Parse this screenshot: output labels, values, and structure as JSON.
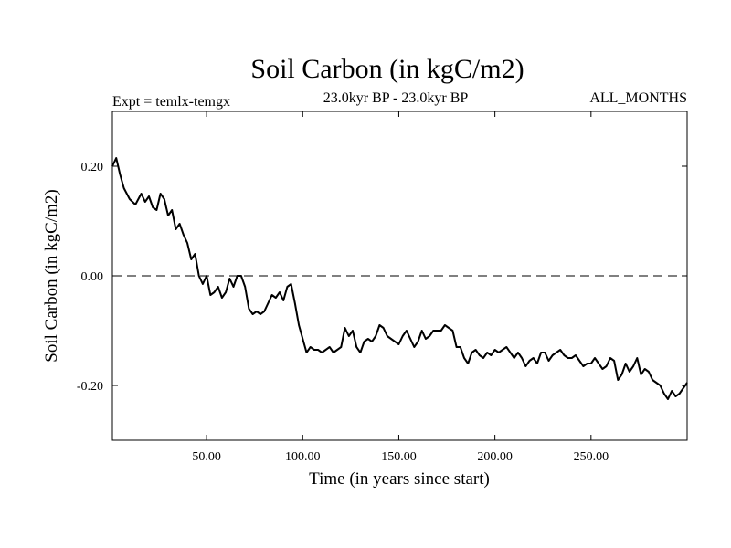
{
  "chart_data": {
    "type": "line",
    "title": "Soil Carbon (in kgC/m2)",
    "subtitle_left": "Expt = temlx-temgx",
    "subtitle_center": "23.0kyr BP - 23.0kyr BP",
    "subtitle_right": "ALL_MONTHS",
    "xlabel": "Time (in years since start)",
    "ylabel": "Soil Carbon (in kgC/m2)",
    "xlim": [
      1,
      300
    ],
    "ylim": [
      -0.3,
      0.3
    ],
    "xticks": [
      50,
      100,
      150,
      200,
      250
    ],
    "xtick_labels": [
      "50.00",
      "100.00",
      "150.00",
      "200.00",
      "250.00"
    ],
    "yticks": [
      0.2,
      0.0,
      -0.2
    ],
    "ytick_labels": [
      "0.20",
      "0.00",
      "-0.20"
    ],
    "grid": false,
    "reference_line": {
      "y": 0.0,
      "style": "dashed"
    },
    "series": [
      {
        "x": [
          1,
          3,
          5,
          7,
          10,
          13,
          16,
          18,
          20,
          22,
          24,
          26,
          28,
          30,
          32,
          34,
          36,
          38,
          40,
          42,
          44,
          46,
          48,
          50,
          52,
          54,
          56,
          58,
          60,
          62,
          64,
          66,
          68,
          70,
          72,
          74,
          76,
          78,
          80,
          82,
          84,
          86,
          88,
          90,
          92,
          94,
          96,
          98,
          100,
          102,
          104,
          106,
          108,
          110,
          112,
          114,
          116,
          118,
          120,
          122,
          124,
          126,
          128,
          130,
          132,
          134,
          136,
          138,
          140,
          142,
          144,
          146,
          148,
          150,
          152,
          154,
          156,
          158,
          160,
          162,
          164,
          166,
          168,
          170,
          172,
          174,
          176,
          178,
          180,
          182,
          184,
          186,
          188,
          190,
          192,
          194,
          196,
          198,
          200,
          202,
          204,
          206,
          208,
          210,
          212,
          214,
          216,
          218,
          220,
          222,
          224,
          226,
          228,
          230,
          232,
          234,
          236,
          238,
          240,
          242,
          244,
          246,
          248,
          250,
          252,
          254,
          256,
          258,
          260,
          262,
          264,
          266,
          268,
          270,
          272,
          274,
          276,
          278,
          280,
          282,
          284,
          286,
          288,
          290,
          292,
          294,
          296,
          298,
          300
        ],
        "y": [
          0.2,
          0.215,
          0.185,
          0.16,
          0.14,
          0.13,
          0.15,
          0.135,
          0.145,
          0.125,
          0.12,
          0.15,
          0.14,
          0.11,
          0.12,
          0.085,
          0.095,
          0.075,
          0.06,
          0.03,
          0.04,
          0.0,
          -0.015,
          0.0,
          -0.035,
          -0.03,
          -0.02,
          -0.04,
          -0.03,
          -0.005,
          -0.02,
          0.0,
          0.0,
          -0.02,
          -0.06,
          -0.07,
          -0.065,
          -0.07,
          -0.065,
          -0.05,
          -0.035,
          -0.04,
          -0.03,
          -0.045,
          -0.02,
          -0.015,
          -0.05,
          -0.09,
          -0.115,
          -0.14,
          -0.13,
          -0.135,
          -0.135,
          -0.14,
          -0.135,
          -0.13,
          -0.14,
          -0.135,
          -0.13,
          -0.095,
          -0.11,
          -0.1,
          -0.13,
          -0.14,
          -0.12,
          -0.115,
          -0.12,
          -0.11,
          -0.09,
          -0.095,
          -0.11,
          -0.115,
          -0.12,
          -0.125,
          -0.11,
          -0.1,
          -0.115,
          -0.13,
          -0.12,
          -0.1,
          -0.115,
          -0.11,
          -0.1,
          -0.1,
          -0.1,
          -0.09,
          -0.095,
          -0.1,
          -0.13,
          -0.13,
          -0.15,
          -0.16,
          -0.14,
          -0.135,
          -0.145,
          -0.15,
          -0.14,
          -0.145,
          -0.135,
          -0.14,
          -0.135,
          -0.13,
          -0.14,
          -0.15,
          -0.14,
          -0.15,
          -0.165,
          -0.155,
          -0.15,
          -0.16,
          -0.14,
          -0.14,
          -0.155,
          -0.145,
          -0.14,
          -0.135,
          -0.145,
          -0.15,
          -0.15,
          -0.145,
          -0.155,
          -0.165,
          -0.16,
          -0.16,
          -0.15,
          -0.16,
          -0.17,
          -0.165,
          -0.15,
          -0.155,
          -0.19,
          -0.18,
          -0.16,
          -0.175,
          -0.165,
          -0.15,
          -0.18,
          -0.17,
          -0.175,
          -0.19,
          -0.195,
          -0.2,
          -0.215,
          -0.225,
          -0.21,
          -0.22,
          -0.215,
          -0.205,
          -0.195
        ]
      }
    ]
  }
}
